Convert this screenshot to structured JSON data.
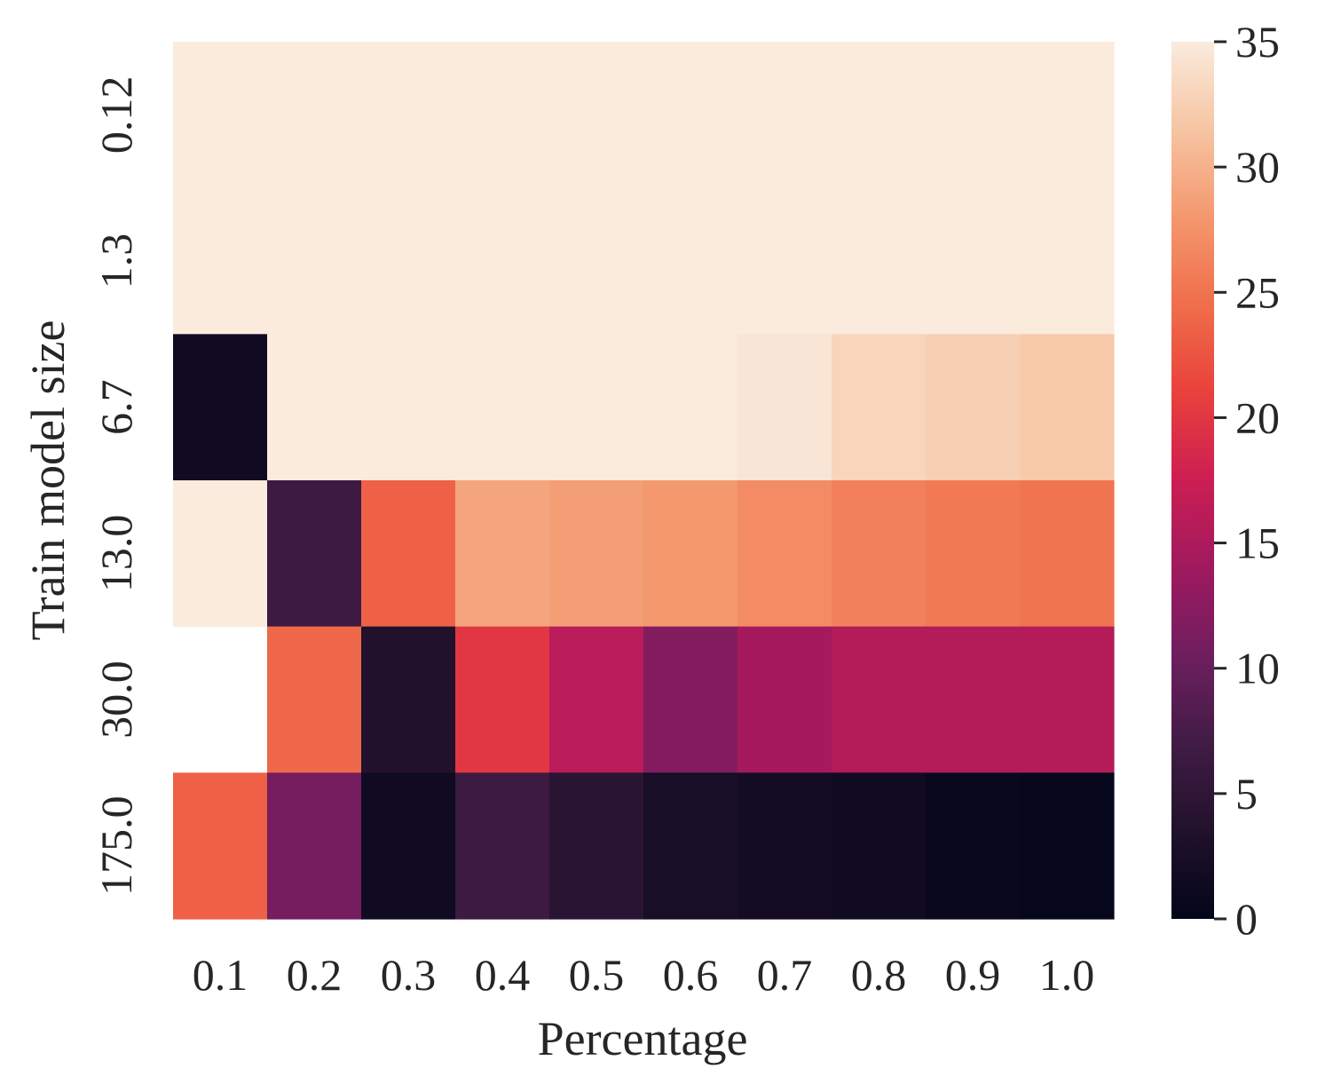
{
  "chart_data": {
    "type": "heatmap",
    "xlabel": "Percentage",
    "ylabel": "Train model size",
    "x_categories": [
      "0.1",
      "0.2",
      "0.3",
      "0.4",
      "0.5",
      "0.6",
      "0.7",
      "0.8",
      "0.9",
      "1.0"
    ],
    "y_categories": [
      "0.12",
      "1.3",
      "6.7",
      "13.0",
      "30.0",
      "175.0"
    ],
    "values": [
      [
        35,
        35,
        35,
        35,
        35,
        35,
        35,
        35,
        35,
        35
      ],
      [
        35,
        35,
        35,
        35,
        35,
        35,
        35,
        35,
        35,
        35
      ],
      [
        1.5,
        35,
        35,
        35,
        35,
        35,
        34.5,
        33,
        32.5,
        32
      ],
      [
        35,
        6.5,
        23.5,
        29,
        28.5,
        28,
        27,
        26,
        25.5,
        25
      ],
      [
        null,
        24,
        3.5,
        20,
        16,
        12,
        14.5,
        15.5,
        15.5,
        15.5
      ],
      [
        23.5,
        11,
        1.5,
        6.5,
        4.5,
        2.5,
        2,
        1.5,
        0.8,
        0.3
      ]
    ],
    "missing_cell_note": "",
    "colormap": "rocket",
    "colorbar": {
      "vmin": 0,
      "vmax": 35,
      "ticks": [
        0,
        5,
        10,
        15,
        20,
        25,
        30,
        35
      ]
    }
  }
}
